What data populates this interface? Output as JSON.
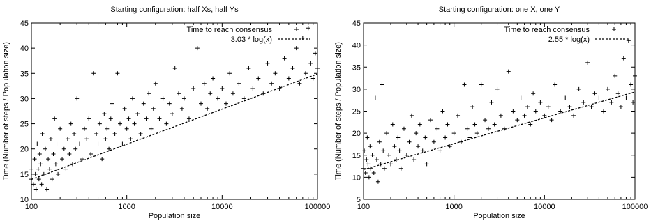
{
  "chart_data": [
    {
      "type": "scatter",
      "title": "Starting configuration: half Xs, half Ys",
      "xlabel": "Population size",
      "ylabel": "Time (Number of steps / Population size)",
      "xscale": "log",
      "xlim": [
        100,
        100000
      ],
      "ylim": [
        10,
        45
      ],
      "x_ticks": [
        "100",
        "1000",
        "10000",
        "100000"
      ],
      "y_ticks": [
        "10",
        "15",
        "20",
        "25",
        "30",
        "35",
        "40",
        "45"
      ],
      "legend_position": "top-right",
      "grid": false,
      "series": [
        {
          "name": "Time to reach consensus",
          "marker": "plus",
          "points": [
            [
              100,
              14
            ],
            [
              100,
              16
            ],
            [
              105,
              13
            ],
            [
              108,
              18
            ],
            [
              110,
              15
            ],
            [
              112,
              12
            ],
            [
              115,
              21
            ],
            [
              118,
              16
            ],
            [
              120,
              14
            ],
            [
              122,
              19
            ],
            [
              125,
              17
            ],
            [
              128,
              13
            ],
            [
              130,
              23
            ],
            [
              135,
              15
            ],
            [
              140,
              20
            ],
            [
              145,
              12
            ],
            [
              150,
              18
            ],
            [
              155,
              16
            ],
            [
              160,
              22
            ],
            [
              165,
              14
            ],
            [
              170,
              19
            ],
            [
              175,
              26
            ],
            [
              180,
              17
            ],
            [
              185,
              21
            ],
            [
              190,
              15
            ],
            [
              200,
              24
            ],
            [
              210,
              18
            ],
            [
              220,
              20
            ],
            [
              230,
              16
            ],
            [
              240,
              22
            ],
            [
              250,
              19
            ],
            [
              260,
              25
            ],
            [
              270,
              17
            ],
            [
              280,
              23
            ],
            [
              290,
              20
            ],
            [
              300,
              30
            ],
            [
              320,
              21
            ],
            [
              340,
              18
            ],
            [
              360,
              24
            ],
            [
              380,
              22
            ],
            [
              400,
              26
            ],
            [
              420,
              19
            ],
            [
              450,
              35
            ],
            [
              480,
              23
            ],
            [
              500,
              21
            ],
            [
              520,
              25
            ],
            [
              550,
              18
            ],
            [
              580,
              27
            ],
            [
              600,
              22
            ],
            [
              620,
              24
            ],
            [
              650,
              20
            ],
            [
              680,
              26
            ],
            [
              700,
              29
            ],
            [
              750,
              23
            ],
            [
              800,
              35
            ],
            [
              850,
              25
            ],
            [
              900,
              21
            ],
            [
              950,
              28
            ],
            [
              1000,
              24
            ],
            [
              1050,
              26
            ],
            [
              1100,
              22
            ],
            [
              1150,
              30
            ],
            [
              1200,
              25
            ],
            [
              1300,
              27
            ],
            [
              1400,
              23
            ],
            [
              1500,
              29
            ],
            [
              1600,
              26
            ],
            [
              1700,
              31
            ],
            [
              1800,
              24
            ],
            [
              1900,
              28
            ],
            [
              2000,
              33
            ],
            [
              2200,
              26
            ],
            [
              2400,
              30
            ],
            [
              2600,
              25
            ],
            [
              2800,
              29
            ],
            [
              3000,
              27
            ],
            [
              3200,
              36
            ],
            [
              3500,
              31
            ],
            [
              3800,
              28
            ],
            [
              4000,
              30
            ],
            [
              4500,
              26
            ],
            [
              5000,
              32
            ],
            [
              5500,
              40
            ],
            [
              6000,
              29
            ],
            [
              6500,
              33
            ],
            [
              7000,
              28
            ],
            [
              7500,
              31
            ],
            [
              8000,
              34
            ],
            [
              9000,
              30
            ],
            [
              10000,
              32
            ],
            [
              11000,
              29
            ],
            [
              12000,
              35
            ],
            [
              13000,
              31
            ],
            [
              15000,
              33
            ],
            [
              17000,
              30
            ],
            [
              19000,
              36
            ],
            [
              21000,
              32
            ],
            [
              24000,
              34
            ],
            [
              27000,
              31
            ],
            [
              30000,
              37
            ],
            [
              33000,
              33
            ],
            [
              36000,
              35
            ],
            [
              40000,
              32
            ],
            [
              45000,
              38
            ],
            [
              50000,
              34
            ],
            [
              55000,
              36
            ],
            [
              60000,
              40
            ],
            [
              65000,
              33
            ],
            [
              70000,
              42
            ],
            [
              75000,
              35
            ],
            [
              80000,
              44
            ],
            [
              85000,
              37
            ],
            [
              90000,
              34
            ],
            [
              95000,
              39
            ],
            [
              100000,
              36
            ]
          ]
        },
        {
          "name": "3.03 * log(x)",
          "style": "dashed",
          "coefficient": 3.03
        }
      ]
    },
    {
      "type": "scatter",
      "title": "Starting configuration: one X, one Y",
      "xlabel": "Population size",
      "ylabel": "Time (Number of steps / Population size)",
      "xscale": "log",
      "xlim": [
        100,
        100000
      ],
      "ylim": [
        5,
        45
      ],
      "x_ticks": [
        "100",
        "1000",
        "10000",
        "100000"
      ],
      "y_ticks": [
        "5",
        "10",
        "15",
        "20",
        "25",
        "30",
        "35",
        "40",
        "45"
      ],
      "legend_position": "top-right",
      "grid": false,
      "series": [
        {
          "name": "Time to reach consensus",
          "marker": "plus",
          "points": [
            [
              100,
              12
            ],
            [
              102,
              16
            ],
            [
              105,
              11
            ],
            [
              108,
              14
            ],
            [
              110,
              19
            ],
            [
              112,
              13
            ],
            [
              115,
              10
            ],
            [
              118,
              17
            ],
            [
              120,
              12
            ],
            [
              125,
              15
            ],
            [
              130,
              11
            ],
            [
              135,
              28
            ],
            [
              140,
              14
            ],
            [
              145,
              9
            ],
            [
              150,
              18
            ],
            [
              155,
              13
            ],
            [
              160,
              31
            ],
            [
              165,
              16
            ],
            [
              170,
              12
            ],
            [
              180,
              20
            ],
            [
              190,
              15
            ],
            [
              200,
              13
            ],
            [
              210,
              22
            ],
            [
              220,
              17
            ],
            [
              230,
              14
            ],
            [
              240,
              19
            ],
            [
              250,
              16
            ],
            [
              260,
              12
            ],
            [
              280,
              21
            ],
            [
              300,
              15
            ],
            [
              320,
              18
            ],
            [
              340,
              24
            ],
            [
              360,
              14
            ],
            [
              380,
              20
            ],
            [
              400,
              17
            ],
            [
              420,
              22
            ],
            [
              450,
              16
            ],
            [
              480,
              19
            ],
            [
              500,
              13
            ],
            [
              550,
              23
            ],
            [
              600,
              18
            ],
            [
              650,
              21
            ],
            [
              700,
              16
            ],
            [
              750,
              25
            ],
            [
              800,
              19
            ],
            [
              850,
              22
            ],
            [
              900,
              17
            ],
            [
              1000,
              20
            ],
            [
              1100,
              24
            ],
            [
              1200,
              18
            ],
            [
              1300,
              31
            ],
            [
              1400,
              21
            ],
            [
              1500,
              19
            ],
            [
              1600,
              26
            ],
            [
              1700,
              22
            ],
            [
              1800,
              20
            ],
            [
              2000,
              31
            ],
            [
              2200,
              23
            ],
            [
              2400,
              21
            ],
            [
              2600,
              27
            ],
            [
              2800,
              22
            ],
            [
              3000,
              30
            ],
            [
              3300,
              24
            ],
            [
              3600,
              21
            ],
            [
              4000,
              34
            ],
            [
              4500,
              25
            ],
            [
              5000,
              23
            ],
            [
              5500,
              28
            ],
            [
              6000,
              24
            ],
            [
              6500,
              26
            ],
            [
              7000,
              22
            ],
            [
              7500,
              29
            ],
            [
              8000,
              25
            ],
            [
              9000,
              27
            ],
            [
              10000,
              24
            ],
            [
              11000,
              26
            ],
            [
              12000,
              23
            ],
            [
              13000,
              31
            ],
            [
              15000,
              25
            ],
            [
              17000,
              28
            ],
            [
              19000,
              26
            ],
            [
              21000,
              24
            ],
            [
              24000,
              30
            ],
            [
              27000,
              27
            ],
            [
              30000,
              36
            ],
            [
              33000,
              26
            ],
            [
              36000,
              29
            ],
            [
              40000,
              28
            ],
            [
              45000,
              25
            ],
            [
              50000,
              30
            ],
            [
              55000,
              27
            ],
            [
              60000,
              33
            ],
            [
              65000,
              29
            ],
            [
              70000,
              26
            ],
            [
              75000,
              37
            ],
            [
              80000,
              28
            ],
            [
              85000,
              41
            ],
            [
              90000,
              31
            ],
            [
              95000,
              27
            ],
            [
              100000,
              33
            ]
          ]
        },
        {
          "name": "2.55 * log(x)",
          "style": "dashed",
          "coefficient": 2.55
        }
      ]
    }
  ]
}
